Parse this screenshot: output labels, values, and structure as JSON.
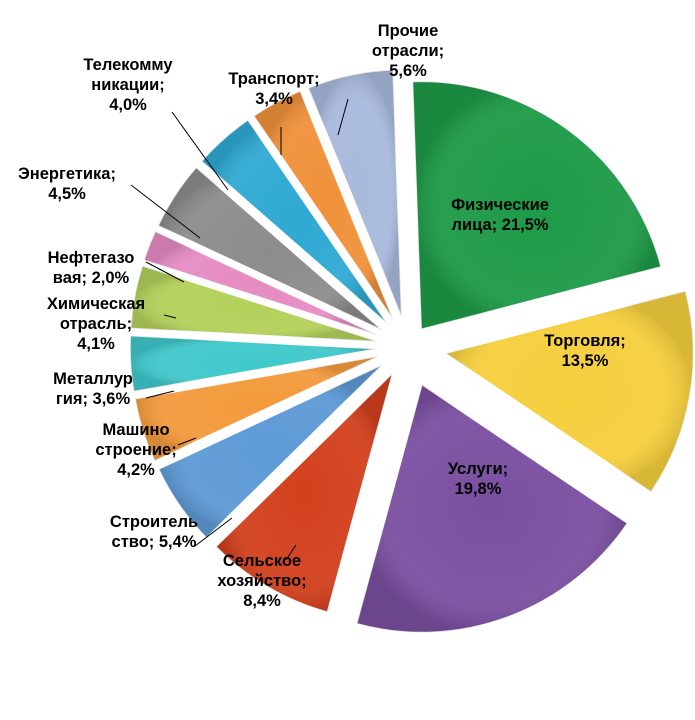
{
  "chart_data": {
    "type": "pie",
    "slices": [
      {
        "lines": [
          "Физические",
          "лица; 21,5%"
        ],
        "category": "Физические лица",
        "value": 21.5,
        "color": "#1d9a47"
      },
      {
        "lines": [
          "Торговля;",
          "13,5%"
        ],
        "category": "Торговля",
        "value": 13.5,
        "color": "#f6cf3d"
      },
      {
        "lines": [
          "Услуги;",
          "19,8%"
        ],
        "category": "Услуги",
        "value": 19.8,
        "color": "#7a4fa0"
      },
      {
        "lines": [
          "Сельское",
          "хозяйство;",
          "8,4%"
        ],
        "category": "Сельское хозяйство",
        "value": 8.4,
        "color": "#d2401d"
      },
      {
        "lines": [
          "Строитель",
          "ство; 5,4%"
        ],
        "category": "Строительство",
        "value": 5.4,
        "color": "#5d9ad6"
      },
      {
        "lines": [
          "Машино",
          "строение;",
          "4,2%"
        ],
        "category": "Машиностроение",
        "value": 4.2,
        "color": "#f39a3c"
      },
      {
        "lines": [
          "Металлур",
          "гия; 3,6%"
        ],
        "category": "Металлургия",
        "value": 3.6,
        "color": "#40c8cb"
      },
      {
        "lines": [
          "Химическая",
          "отрасль;",
          "4,1%"
        ],
        "category": "Химическая отрасль",
        "value": 4.1,
        "color": "#b3d05a"
      },
      {
        "lines": [
          "Нефтегазо",
          "вая; 2,0%"
        ],
        "category": "Нефтегазовая",
        "value": 2.0,
        "color": "#e68cc3"
      },
      {
        "lines": [
          "Энергетика;",
          "4,5%"
        ],
        "category": "Энергетика",
        "value": 4.5,
        "color": "#8c8c8c"
      },
      {
        "lines": [
          "Телекомму",
          "никации;",
          "4,0%"
        ],
        "category": "Телекоммуникации",
        "value": 4.0,
        "color": "#2fa9d3"
      },
      {
        "lines": [
          "Транспорт;",
          "3,4%"
        ],
        "category": "Транспорт",
        "value": 3.4,
        "color": "#f0913a"
      },
      {
        "lines": [
          "Прочие",
          "отрасли;",
          "5,6%"
        ],
        "category": "Прочие отрасли",
        "value": 5.6,
        "color": "#a8b9dc"
      }
    ]
  }
}
